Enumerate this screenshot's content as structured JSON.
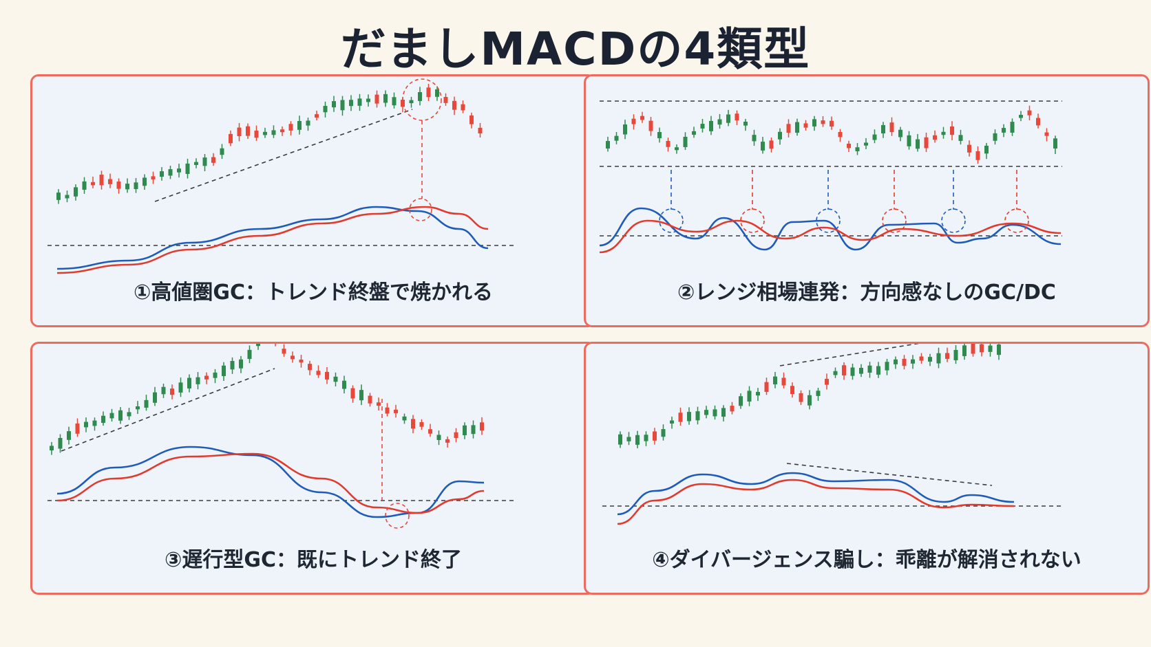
{
  "title": "だましMACDの4類型",
  "colors": {
    "up": "#2f8a4e",
    "down": "#e8483a",
    "macd": "#1f5bb8",
    "signal": "#e23b2e",
    "dash": "#3a3a3a",
    "border": "#ec6b5e"
  },
  "panels": [
    {
      "caption": "①高値圏GC：トレンド終盤で焼かれる"
    },
    {
      "caption": "②レンジ相場連発：方向感なしのGC/DC"
    },
    {
      "caption": "③遅行型GC：既にトレンド終了"
    },
    {
      "caption": "④ダイバージェンス騙し：乖離が解消されない"
    }
  ]
}
